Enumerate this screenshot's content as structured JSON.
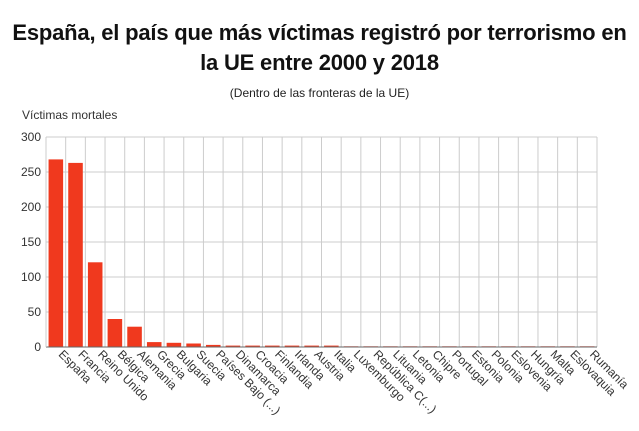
{
  "chart_data": {
    "type": "bar",
    "title_line1": "España, el país que más víctimas registró por terrorismo en",
    "title_line2": "la UE entre 2000 y 2018",
    "subtitle": "(Dentro de las fronteras de la UE)",
    "ylabel": "Víctimas mortales",
    "xlabel": "",
    "ylim": [
      0,
      300
    ],
    "yticks": [
      0,
      50,
      100,
      150,
      200,
      250,
      300
    ],
    "grid": true,
    "bar_color": "#f0391e",
    "categories": [
      "España",
      "Francia",
      "Reino Unido",
      "Bélgica",
      "Alemania",
      "Grecia",
      "Bulgaria",
      "Suecia",
      "Países Bajo (...)",
      "Dinamarca",
      "Croacia",
      "Finlandia",
      "Irlanda",
      "Austria",
      "Italia",
      "Luxemburgo",
      "República C(...)",
      "Lituania",
      "Letonia",
      "Chipre",
      "Portugal",
      "Estonia",
      "Polonia",
      "Eslovenia",
      "Hungría",
      "Malta",
      "Eslovaquia",
      "Rumanía"
    ],
    "values": [
      268,
      263,
      121,
      40,
      29,
      7,
      6,
      5,
      3,
      2,
      2,
      2,
      2,
      2,
      2,
      1,
      1,
      1,
      1,
      1,
      1,
      1,
      1,
      1,
      1,
      1,
      1,
      1
    ]
  }
}
